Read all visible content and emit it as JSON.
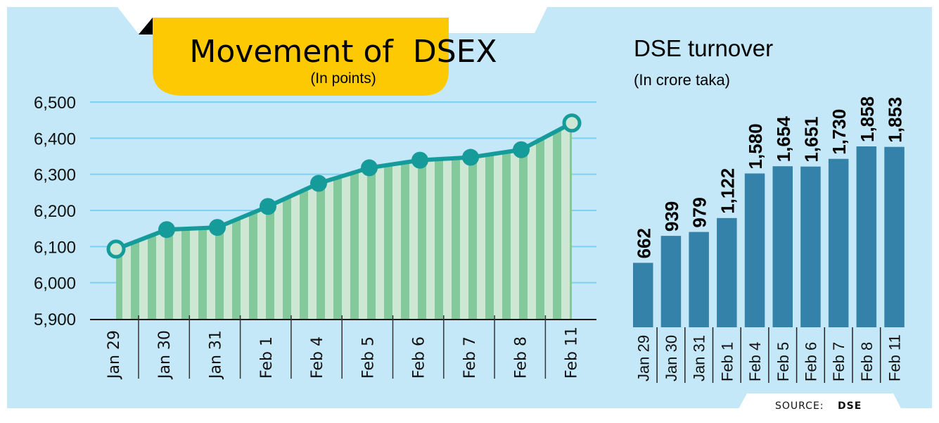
{
  "colors": {
    "panel_bg": "#c5e8f8",
    "grid": "#7dd0f2",
    "banner": "#fcc903",
    "area_dark": "#84c99c",
    "area_light": "#cde7d4",
    "line": "#169b9b",
    "bar": "#3482aa",
    "axis": "#1a1a1a",
    "source_bg": "#ffffff"
  },
  "source": {
    "label": "SOURCE:",
    "value": "DSE"
  },
  "chart_data": [
    {
      "type": "area",
      "title": "Movement of  DSEX",
      "subtitle": "(In points)",
      "xlabel": "",
      "ylabel": "",
      "categories": [
        "Jan 29",
        "Jan 30",
        "Jan 31",
        "Feb 1",
        "Feb 4",
        "Feb 5",
        "Feb 6",
        "Feb 7",
        "Feb 8",
        "Feb 11"
      ],
      "values": [
        6093,
        6147,
        6153,
        6211,
        6275,
        6318,
        6339,
        6347,
        6368,
        6442
      ],
      "ylim": [
        5900,
        6500
      ],
      "yticks": [
        5900,
        6000,
        6100,
        6200,
        6300,
        6400,
        6500
      ],
      "ytick_labels": [
        "5,900",
        "6,000",
        "6,100",
        "6,200",
        "6,300",
        "6,400",
        "6,500"
      ],
      "grid": true,
      "legend": "none"
    },
    {
      "type": "bar",
      "title": "DSE turnover",
      "subtitle": "(In crore taka)",
      "xlabel": "",
      "ylabel": "",
      "categories": [
        "Jan 29",
        "Jan 30",
        "Jan 31",
        "Feb 1",
        "Feb 4",
        "Feb 5",
        "Feb 6",
        "Feb 7",
        "Feb 8",
        "Feb 11"
      ],
      "values": [
        662,
        939,
        979,
        1122,
        1580,
        1654,
        1651,
        1730,
        1858,
        1853
      ],
      "value_labels": [
        "662",
        "939",
        "979",
        "1,122",
        "1,580",
        "1,654",
        "1,651",
        "1,730",
        "1,858",
        "1,853"
      ],
      "ylim": [
        0,
        1858
      ],
      "grid": false,
      "legend": "none"
    }
  ]
}
